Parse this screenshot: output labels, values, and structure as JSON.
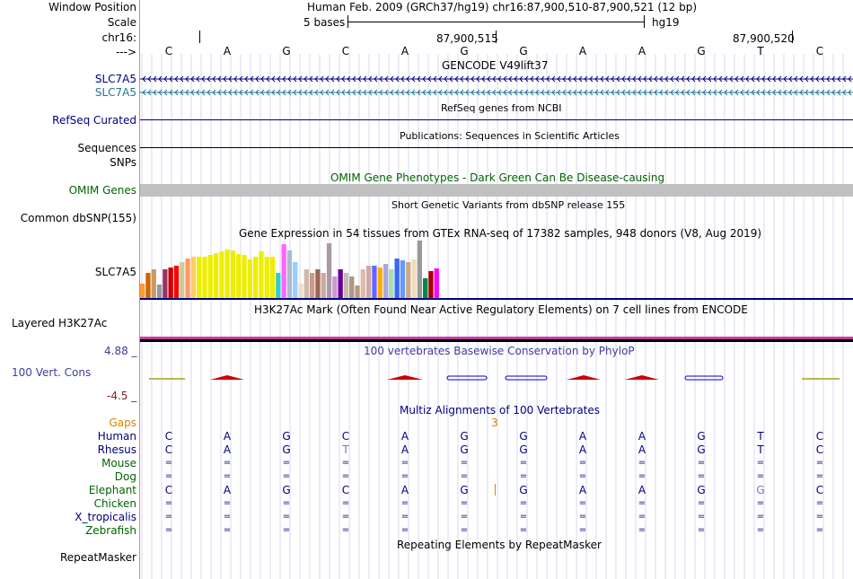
{
  "header": {
    "window_position_label": "Window Position",
    "window_position_value": "Human Feb. 2009 (GRCh37/hg19)   chr16:87,900,510-87,900,521 (12 bp)",
    "scale_label": "Scale",
    "scale_value": "5 bases",
    "scale_assembly": "hg19",
    "chrom_label": "chr16:",
    "pos1": "87,900,515",
    "pos2": "87,900,520",
    "strand_label": "--->"
  },
  "bases": [
    "C",
    "A",
    "G",
    "C",
    "A",
    "G",
    "G",
    "A",
    "A",
    "G",
    "T",
    "C"
  ],
  "tracks": {
    "gencode": {
      "title": "GENCODE V49lift37",
      "labels": [
        "SLC7A5",
        "SLC7A5"
      ]
    },
    "refseq": {
      "title": "RefSeq genes from NCBI",
      "label": "RefSeq Curated"
    },
    "publications": {
      "title": "Publications: Sequences in Scientific Articles",
      "label": "Sequences"
    },
    "snps": {
      "label": "SNPs"
    },
    "omim": {
      "title": "OMIM Gene Phenotypes - Dark Green Can Be Disease-causing",
      "label": "OMIM Genes"
    },
    "dbsnp": {
      "title": "Short Genetic Variants from dbSNP release 155",
      "label": "Common dbSNP(155)"
    },
    "gtex": {
      "title": "Gene Expression in 54 tissues from GTEx RNA-seq of 17382 samples, 948 donors (V8, Aug 2019)",
      "label": "SLC7A5"
    },
    "h3k27ac": {
      "title": "H3K27Ac Mark (Often Found Near Active Regulatory Elements) on 7 cell lines from ENCODE",
      "label": "Layered H3K27Ac"
    },
    "phylop": {
      "title": "100 vertebrates Basewise Conservation by PhyloP",
      "label": "100 Vert. Cons",
      "max_label": "4.88 _",
      "min_label": "-4.5 _"
    },
    "multiz": {
      "title": "Multiz Alignments of 100 Vertebrates",
      "gaps_label": "Gaps",
      "gap_count": "3",
      "species": [
        {
          "name": "Human",
          "color": "#000080",
          "bases": [
            "C",
            "A",
            "G",
            "C",
            "A",
            "G",
            "G",
            "A",
            "A",
            "G",
            "T",
            "C"
          ]
        },
        {
          "name": "Rhesus",
          "color": "#000080",
          "bases": [
            "C",
            "A",
            "G",
            "T",
            "A",
            "G",
            "G",
            "A",
            "A",
            "G",
            "T",
            "C"
          ]
        },
        {
          "name": "Mouse",
          "color": "#006400",
          "bases": [
            "=",
            "=",
            "=",
            "=",
            "=",
            "=",
            "=",
            "=",
            "=",
            "=",
            "=",
            "="
          ]
        },
        {
          "name": "Dog",
          "color": "#006400",
          "bases": [
            "=",
            "=",
            "=",
            "=",
            "=",
            "=",
            "=",
            "=",
            "=",
            "=",
            "=",
            "="
          ]
        },
        {
          "name": "Elephant",
          "color": "#006400",
          "bases": [
            "C",
            "A",
            "G",
            "C",
            "A",
            "G",
            "G",
            "A",
            "A",
            "G",
            "G",
            "C"
          ]
        },
        {
          "name": "Chicken",
          "color": "#006400",
          "bases": [
            "=",
            "=",
            "=",
            "=",
            "=",
            "=",
            "=",
            "=",
            "=",
            "=",
            "=",
            "="
          ]
        },
        {
          "name": "X_tropicalis",
          "color": "#000080",
          "bases": [
            "=",
            "=",
            "=",
            "=",
            "=",
            "=",
            "=",
            "=",
            "=",
            "=",
            "=",
            "="
          ]
        },
        {
          "name": "Zebrafish",
          "color": "#006400",
          "bases": [
            "=",
            "=",
            "=",
            "=",
            "=",
            "=",
            "=",
            "=",
            "=",
            "=",
            "=",
            "="
          ]
        }
      ]
    },
    "repeatmasker": {
      "title": "Repeating Elements by RepeatMasker",
      "label": "RepeatMasker"
    }
  },
  "colors": {
    "track_blue": "#000080",
    "gencode_teal": "#1e7890",
    "omim_green": "#006400",
    "omim_bar": "#c0c0c0",
    "phylop_blue": "#3c3c9c",
    "phylop_red": "#8b1a1a",
    "gaps_orange": "#e08000",
    "h3k27ac_magenta": "#c040a0",
    "guide": "#d8d8f0",
    "separator": "#e08080"
  },
  "gtex_colors": [
    "#ff9933",
    "#cc6600",
    "#cc9966",
    "#999999",
    "#993366",
    "#cc0000",
    "#ff0000",
    "#cccc99",
    "#ff9966",
    "#ffcc66",
    "#eeee00",
    "#eeee00",
    "#eeee00",
    "#eeee00",
    "#eeee00",
    "#eeee00",
    "#eeee00",
    "#eeee00",
    "#eeee00",
    "#eeee00",
    "#eeee00",
    "#eeee00",
    "#eeee00",
    "#eeee00",
    "#33cccc",
    "#ff66ff",
    "#aabbcc",
    "#99ccff",
    "#eeddcc",
    "#ccbbaa",
    "#cc9988",
    "#996655",
    "#ccaa99",
    "#aa99aa",
    "#cc99cc",
    "#660099",
    "#ccbbaa",
    "#aa9988",
    "#bb9977",
    "#ddbbaa",
    "#ccaaaa",
    "#6666ff",
    "#ffaa00",
    "#aaaadd",
    "#aaddaa",
    "#3366ff",
    "#6699ff",
    "#ccaa88",
    "#eeddbb",
    "#999999",
    "#008844",
    "#aa0000",
    "#ff00ff",
    "#ffffff"
  ],
  "gtex_values": [
    16,
    28,
    32,
    15,
    32,
    34,
    36,
    40,
    44,
    46,
    46,
    46,
    48,
    50,
    52,
    54,
    53,
    49,
    48,
    43,
    46,
    52,
    46,
    46,
    28,
    60,
    53,
    40,
    16,
    32,
    28,
    32,
    28,
    61,
    24,
    32,
    28,
    24,
    14,
    32,
    36,
    36,
    34,
    38,
    32,
    44,
    42,
    40,
    43,
    64,
    22,
    30,
    33,
    0
  ]
}
